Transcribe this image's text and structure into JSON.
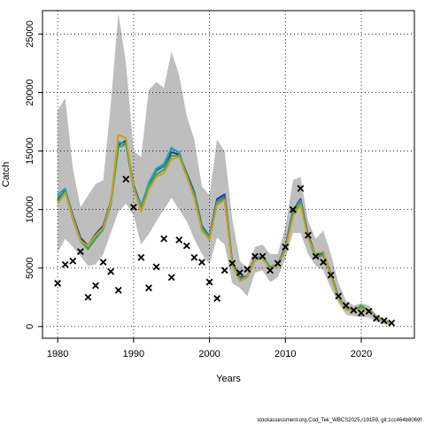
{
  "chart_data": {
    "type": "line",
    "xlabel": "Years",
    "ylabel": "Catch",
    "xlim": [
      1978,
      2027
    ],
    "ylim": [
      -1000,
      27000
    ],
    "x_ticks": [
      1980,
      1990,
      2000,
      2010,
      2020
    ],
    "y_ticks": [
      0,
      5000,
      10000,
      15000,
      20000,
      25000
    ],
    "grid": true,
    "grid_style": "dotted",
    "footnote": "stockassessment.org,Cod_Tek_WBCS2025,r19159, git:1cc464b8069f",
    "band": {
      "color": "#bebebe",
      "x": [
        1980,
        1981,
        1982,
        1983,
        1984,
        1985,
        1986,
        1987,
        1988,
        1989,
        1990,
        1991,
        1992,
        1993,
        1994,
        1995,
        1996,
        1997,
        1998,
        1999,
        2000,
        2001,
        2002,
        2003,
        2004,
        2005,
        2006,
        2007,
        2008,
        2009,
        2010,
        2011,
        2012,
        2013,
        2014,
        2015,
        2016,
        2017,
        2018,
        2019,
        2020,
        2021,
        2022,
        2023,
        2024
      ],
      "upper": [
        18500,
        19500,
        13500,
        10200,
        11200,
        12200,
        12500,
        19000,
        26800,
        22500,
        15000,
        14500,
        20200,
        20900,
        20400,
        23500,
        21500,
        18000,
        16000,
        12000,
        11200,
        16000,
        15000,
        9200,
        5600,
        5000,
        6800,
        7000,
        6200,
        6200,
        8500,
        12500,
        12800,
        9000,
        7500,
        8200,
        6200,
        3700,
        2200,
        1800,
        2000,
        1800,
        1000,
        700,
        450
      ],
      "lower": [
        6300,
        7500,
        6800,
        6000,
        5200,
        5300,
        6200,
        8000,
        9800,
        10500,
        9500,
        7000,
        7900,
        9000,
        10000,
        11000,
        10000,
        9000,
        7500,
        6200,
        5300,
        7600,
        7000,
        3700,
        3300,
        2600,
        4600,
        4800,
        3800,
        4200,
        5800,
        8000,
        8000,
        6200,
        5200,
        4800,
        3300,
        2000,
        1000,
        900,
        800,
        800,
        400,
        200,
        100
      ]
    },
    "series": [
      {
        "color": "#3b2f8f",
        "values": [
          10800,
          11700,
          9500,
          7600,
          6900,
          7900,
          8600,
          10700,
          15500,
          15900,
          12100,
          10300,
          12100,
          13400,
          13700,
          14900,
          14700,
          13100,
          11500,
          8600,
          7700,
          10900,
          11300,
          5500,
          4200,
          4300,
          5900,
          5900,
          5000,
          5300,
          6800,
          9900,
          10900,
          7800,
          6100,
          6300,
          4500,
          2500,
          1550,
          1350,
          1500,
          1400,
          850,
          450,
          300
        ]
      },
      {
        "color": "#1f7fb8",
        "values": [
          11000,
          11600,
          9400,
          7400,
          6800,
          7800,
          8500,
          10600,
          15700,
          15700,
          12000,
          10300,
          12200,
          13300,
          13700,
          15200,
          14900,
          12900,
          11400,
          8500,
          7700,
          10700,
          11100,
          5400,
          4100,
          4300,
          5800,
          6000,
          5100,
          5300,
          6700,
          9800,
          10800,
          7700,
          6000,
          6200,
          4400,
          2500,
          1550,
          1400,
          1550,
          1400,
          850,
          450,
          300
        ]
      },
      {
        "color": "#2aa6a6",
        "values": [
          11300,
          11800,
          9300,
          7400,
          6700,
          7600,
          8400,
          10500,
          15800,
          15500,
          11900,
          10200,
          12300,
          13500,
          13900,
          15300,
          14800,
          12900,
          11300,
          8400,
          7600,
          10600,
          10900,
          5300,
          4000,
          4300,
          5800,
          6000,
          5100,
          5300,
          6600,
          9700,
          10700,
          7600,
          5900,
          6100,
          4400,
          2400,
          1500,
          1400,
          1600,
          1350,
          850,
          450,
          300
        ]
      },
      {
        "color": "#3aa35a",
        "values": [
          10700,
          11500,
          9200,
          7300,
          6600,
          7500,
          8300,
          10400,
          15300,
          15600,
          11800,
          10000,
          11900,
          13000,
          13400,
          14600,
          14600,
          13000,
          11200,
          8300,
          7500,
          10500,
          10900,
          5300,
          4000,
          4200,
          5700,
          5900,
          5000,
          5200,
          6500,
          9600,
          10600,
          7600,
          5900,
          6100,
          4300,
          2400,
          1500,
          1350,
          1800,
          1300,
          800,
          400,
          280
        ]
      },
      {
        "color": "#c9a21a",
        "values": [
          10500,
          11400,
          9300,
          7300,
          6900,
          7800,
          8400,
          10600,
          16400,
          16100,
          11900,
          9800,
          11700,
          12800,
          13100,
          14300,
          14500,
          12800,
          11000,
          8200,
          7400,
          10400,
          10800,
          5200,
          3900,
          4200,
          5700,
          5800,
          4900,
          5200,
          6500,
          9400,
          10400,
          7500,
          6200,
          6400,
          4300,
          2300,
          1450,
          1300,
          1500,
          1300,
          800,
          400,
          280
        ]
      }
    ],
    "observed": {
      "marker": "x",
      "x": [
        1980,
        1981,
        1982,
        1983,
        1984,
        1985,
        1986,
        1987,
        1988,
        1989,
        1990,
        1991,
        1992,
        1993,
        1994,
        1995,
        1996,
        1997,
        1998,
        1999,
        2000,
        2001,
        2002,
        2003,
        2004,
        2005,
        2006,
        2007,
        2008,
        2009,
        2010,
        2011,
        2012,
        2013,
        2014,
        2015,
        2016,
        2017,
        2018,
        2019,
        2020,
        2021,
        2022,
        2023,
        2024
      ],
      "y": [
        3700,
        5300,
        5600,
        6400,
        2500,
        3500,
        5500,
        4700,
        3100,
        12600,
        10200,
        5900,
        3300,
        5100,
        7500,
        4200,
        7400,
        6900,
        5900,
        5500,
        3800,
        2400,
        4800,
        5400,
        4600,
        4900,
        6000,
        6000,
        4800,
        5400,
        6800,
        10000,
        11800,
        7800,
        6000,
        5500,
        4400,
        2600,
        1800,
        1400,
        1150,
        1300,
        700,
        500,
        300
      ]
    }
  }
}
